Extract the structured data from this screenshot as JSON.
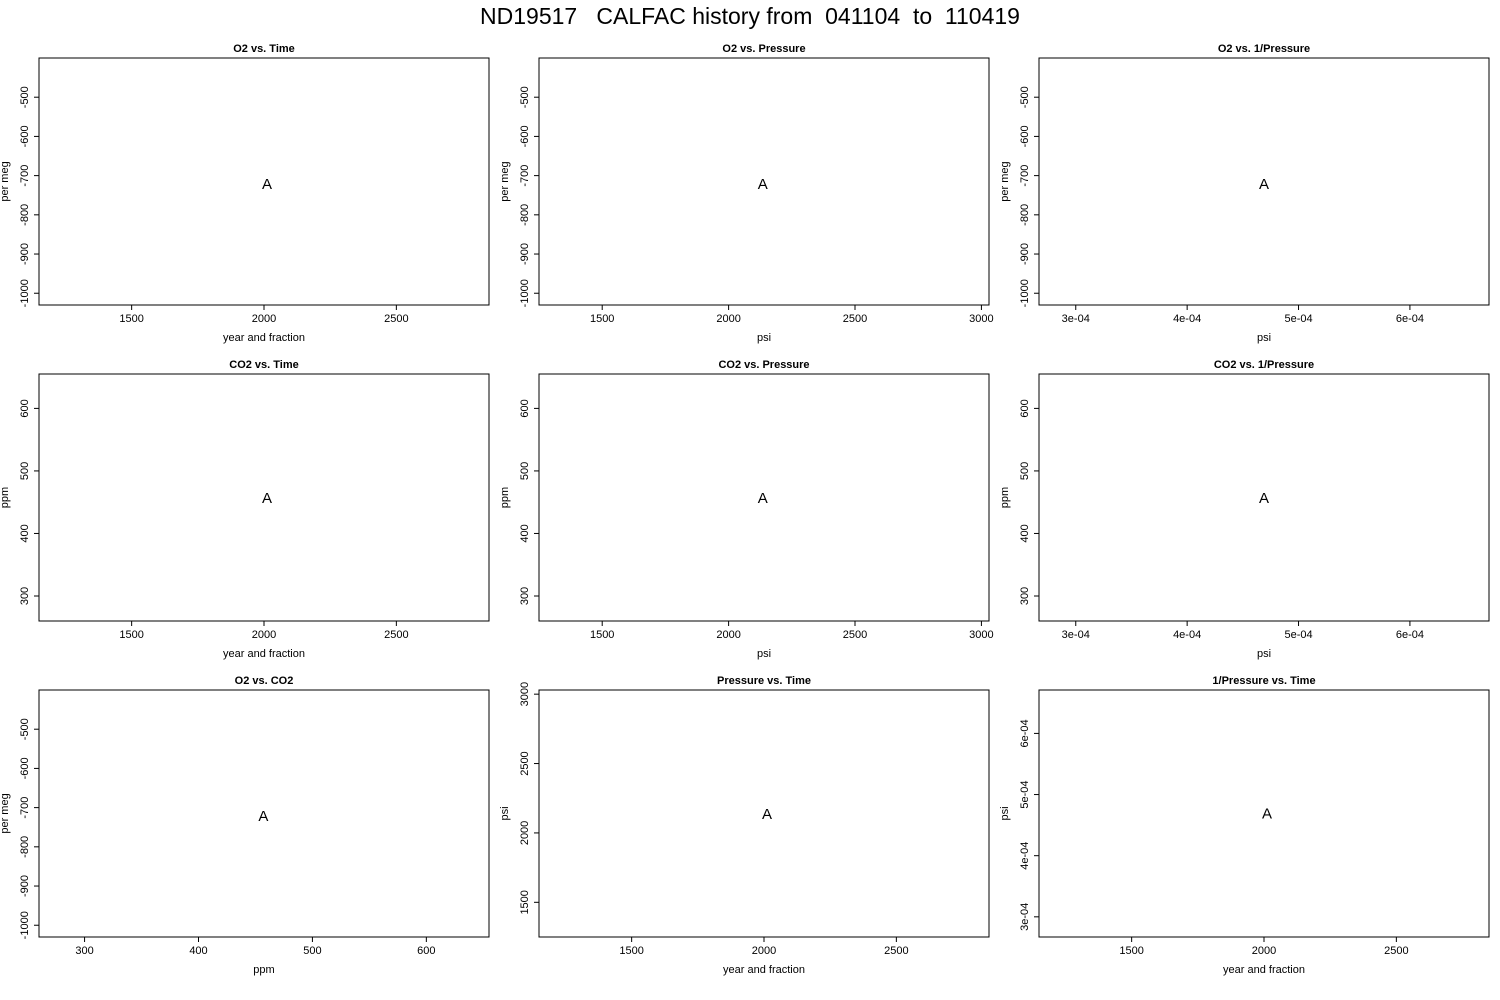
{
  "title": "ND19517   CALFAC history from  041104  to  110419",
  "colors": {
    "o2": "#006400",
    "co2": "#8b0000",
    "o2_vs_co2": "#a020f0",
    "pressure": "#00008b"
  },
  "chart_data": [
    {
      "type": "scatter",
      "title": "O2 vs. Time",
      "xlabel": "year and fraction",
      "ylabel": "per meg",
      "xlim": [
        1150,
        2850
      ],
      "ylim": [
        -1030,
        -400
      ],
      "xticks": [
        1500,
        2000,
        2500
      ],
      "xtick_labels": [
        "1500",
        "2000",
        "2500"
      ],
      "yticks": [
        -1000,
        -900,
        -800,
        -700,
        -600,
        -500
      ],
      "ytick_labels": [
        "-1000",
        "-900",
        "-800",
        "-700",
        "-600",
        "-500"
      ],
      "grid": false,
      "marker": "A",
      "color": "#006400",
      "points": [
        {
          "x": 2011.3,
          "y": -722
        }
      ]
    },
    {
      "type": "scatter",
      "title": "O2 vs. Pressure",
      "xlabel": "psi",
      "ylabel": "per meg",
      "xlim": [
        1250,
        3030
      ],
      "ylim": [
        -1030,
        -400
      ],
      "xticks": [
        1500,
        2000,
        2500,
        3000
      ],
      "xtick_labels": [
        "1500",
        "2000",
        "2500",
        "3000"
      ],
      "yticks": [
        -1000,
        -900,
        -800,
        -700,
        -600,
        -500
      ],
      "ytick_labels": [
        "-1000",
        "-900",
        "-800",
        "-700",
        "-600",
        "-500"
      ],
      "grid": false,
      "marker": "A",
      "color": "#006400",
      "points": [
        {
          "x": 2135,
          "y": -722
        }
      ]
    },
    {
      "type": "scatter",
      "title": "O2 vs. 1/Pressure",
      "xlabel": "psi",
      "ylabel": "per meg",
      "xlim": [
        0.000267,
        0.000671
      ],
      "ylim": [
        -1030,
        -400
      ],
      "xticks": [
        0.0003,
        0.0004,
        0.0005,
        0.0006
      ],
      "xtick_labels": [
        "3e-04",
        "4e-04",
        "5e-04",
        "6e-04"
      ],
      "yticks": [
        -1000,
        -900,
        -800,
        -700,
        -600,
        -500
      ],
      "ytick_labels": [
        "-1000",
        "-900",
        "-800",
        "-700",
        "-600",
        "-500"
      ],
      "grid": false,
      "marker": "A",
      "color": "#006400",
      "points": [
        {
          "x": 0.000469,
          "y": -722
        }
      ]
    },
    {
      "type": "scatter",
      "title": "CO2 vs. Time",
      "xlabel": "year and fraction",
      "ylabel": "ppm",
      "xlim": [
        1150,
        2850
      ],
      "ylim": [
        260,
        655
      ],
      "xticks": [
        1500,
        2000,
        2500
      ],
      "xtick_labels": [
        "1500",
        "2000",
        "2500"
      ],
      "yticks": [
        300,
        400,
        500,
        600
      ],
      "ytick_labels": [
        "300",
        "400",
        "500",
        "600"
      ],
      "grid": false,
      "marker": "A",
      "color": "#8b0000",
      "points": [
        {
          "x": 2011.3,
          "y": 457
        }
      ]
    },
    {
      "type": "scatter",
      "title": "CO2 vs. Pressure",
      "xlabel": "psi",
      "ylabel": "ppm",
      "xlim": [
        1250,
        3030
      ],
      "ylim": [
        260,
        655
      ],
      "xticks": [
        1500,
        2000,
        2500,
        3000
      ],
      "xtick_labels": [
        "1500",
        "2000",
        "2500",
        "3000"
      ],
      "yticks": [
        300,
        400,
        500,
        600
      ],
      "ytick_labels": [
        "300",
        "400",
        "500",
        "600"
      ],
      "grid": false,
      "marker": "A",
      "color": "#8b0000",
      "points": [
        {
          "x": 2135,
          "y": 457
        }
      ]
    },
    {
      "type": "scatter",
      "title": "CO2 vs. 1/Pressure",
      "xlabel": "psi",
      "ylabel": "ppm",
      "xlim": [
        0.000267,
        0.000671
      ],
      "ylim": [
        260,
        655
      ],
      "xticks": [
        0.0003,
        0.0004,
        0.0005,
        0.0006
      ],
      "xtick_labels": [
        "3e-04",
        "4e-04",
        "5e-04",
        "6e-04"
      ],
      "yticks": [
        300,
        400,
        500,
        600
      ],
      "ytick_labels": [
        "300",
        "400",
        "500",
        "600"
      ],
      "grid": false,
      "marker": "A",
      "color": "#8b0000",
      "points": [
        {
          "x": 0.000469,
          "y": 457
        }
      ]
    },
    {
      "type": "scatter",
      "title": "O2 vs. CO2",
      "xlabel": "ppm",
      "ylabel": "per meg",
      "xlim": [
        260,
        655
      ],
      "ylim": [
        -1030,
        -400
      ],
      "xticks": [
        300,
        400,
        500,
        600
      ],
      "xtick_labels": [
        "300",
        "400",
        "500",
        "600"
      ],
      "yticks": [
        -1000,
        -900,
        -800,
        -700,
        -600,
        -500
      ],
      "ytick_labels": [
        "-1000",
        "-900",
        "-800",
        "-700",
        "-600",
        "-500"
      ],
      "grid": false,
      "marker": "A",
      "color": "#a020f0",
      "points": [
        {
          "x": 457,
          "y": -722
        }
      ]
    },
    {
      "type": "scatter",
      "title": "Pressure vs. Time",
      "xlabel": "year and fraction",
      "ylabel": "psi",
      "xlim": [
        1150,
        2850
      ],
      "ylim": [
        1250,
        3030
      ],
      "xticks": [
        1500,
        2000,
        2500
      ],
      "xtick_labels": [
        "1500",
        "2000",
        "2500"
      ],
      "yticks": [
        1500,
        2000,
        2500,
        3000
      ],
      "ytick_labels": [
        "1500",
        "2000",
        "2500",
        "3000"
      ],
      "grid": false,
      "marker": "A",
      "color": "#00008b",
      "points": [
        {
          "x": 2011.3,
          "y": 2135
        }
      ]
    },
    {
      "type": "scatter",
      "title": "1/Pressure vs. Time",
      "xlabel": "year and fraction",
      "ylabel": "psi",
      "xlim": [
        1150,
        2850
      ],
      "ylim": [
        0.000267,
        0.000671
      ],
      "xticks": [
        1500,
        2000,
        2500
      ],
      "xtick_labels": [
        "1500",
        "2000",
        "2500"
      ],
      "yticks": [
        0.0003,
        0.0004,
        0.0005,
        0.0006
      ],
      "ytick_labels": [
        "3e-04",
        "4e-04",
        "5e-04",
        "6e-04"
      ],
      "grid": false,
      "marker": "A",
      "color": "#00008b",
      "points": [
        {
          "x": 2011.3,
          "y": 0.000469
        }
      ]
    }
  ]
}
